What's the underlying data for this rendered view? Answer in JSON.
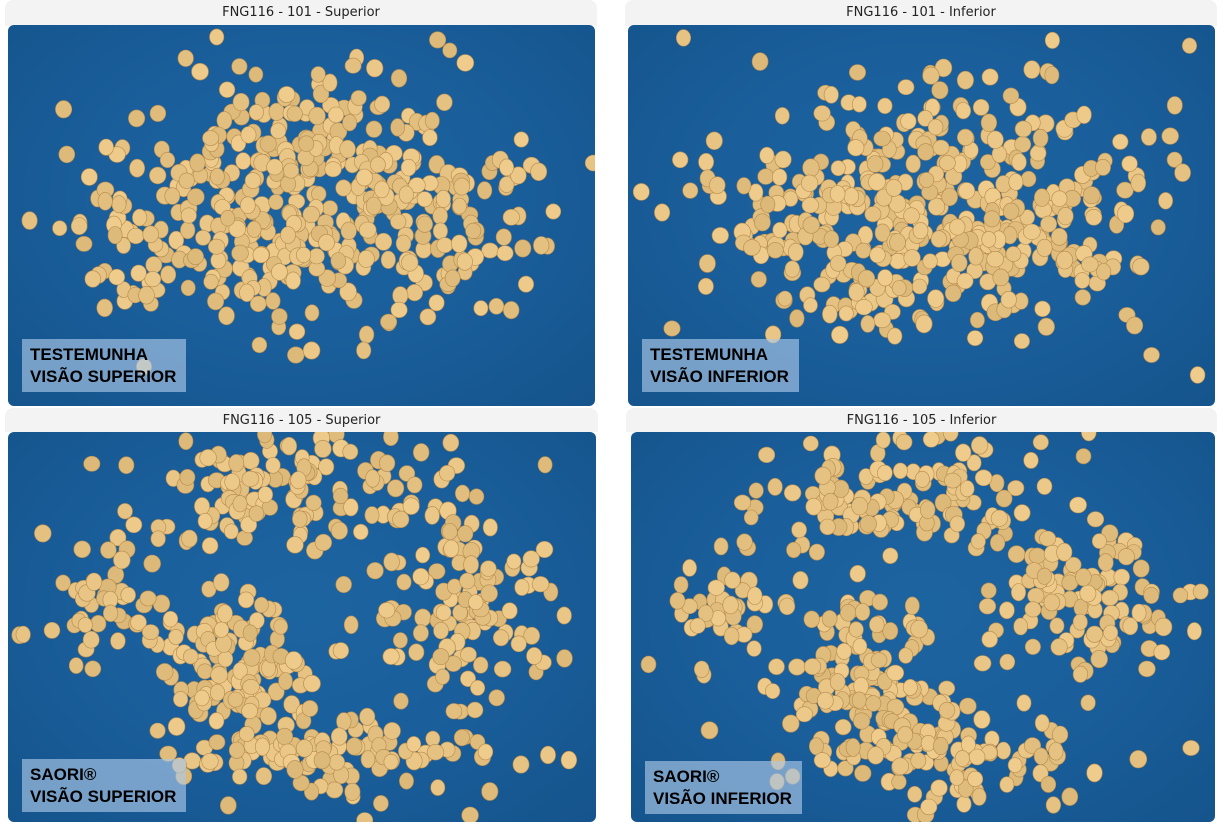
{
  "panels": [
    {
      "title": "FNG116 - 101 - Superior",
      "label_line1": "TESTEMUNHA",
      "label_line2": "VISÃO SUPERIOR"
    },
    {
      "title": "FNG116 - 101 - Inferior",
      "label_line1": "TESTEMUNHA",
      "label_line2": "VISÃO INFERIOR"
    },
    {
      "title": "FNG116 - 105 - Superior",
      "label_line1": "SAORI®",
      "label_line2": "VISÃO SUPERIOR"
    },
    {
      "title": "FNG116 - 105 - Inferior",
      "label_line1": "SAORI®",
      "label_line2": "VISÃO INFERIOR"
    }
  ],
  "colors": {
    "background": "#1a5f9c",
    "seed": "#e3bf80",
    "header": "#f3f3f3"
  }
}
